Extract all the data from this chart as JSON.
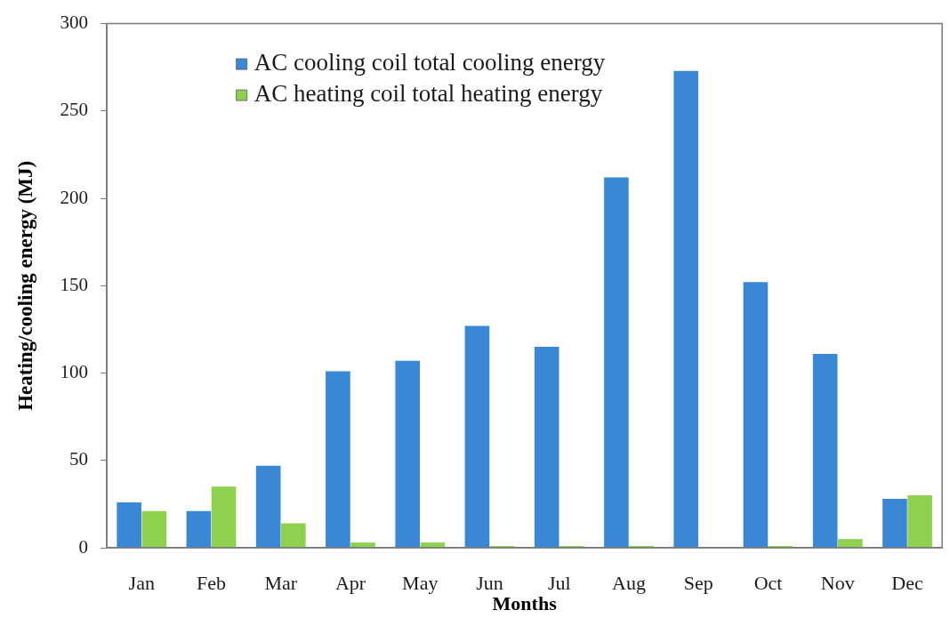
{
  "chart_data": {
    "type": "bar",
    "xlabel": "Months",
    "ylabel": "Heating/cooling energy (MJ)",
    "categories": [
      "Jan",
      "Feb",
      "Mar",
      "Apr",
      "May",
      "Jun",
      "Jul",
      "Aug",
      "Sep",
      "Oct",
      "Nov",
      "Dec"
    ],
    "series": [
      {
        "name": "AC cooling coil total cooling energy",
        "color": "#3a87d6",
        "values": [
          26,
          21,
          47,
          101,
          107,
          127,
          115,
          212,
          273,
          152,
          111,
          28
        ]
      },
      {
        "name": "AC heating coil total heating energy",
        "color": "#8fd14f",
        "values": [
          21,
          35,
          14,
          3,
          3,
          1,
          1,
          1,
          0,
          1,
          5,
          30
        ]
      }
    ],
    "ylim": [
      0,
      300
    ],
    "yticks": [
      0,
      50,
      100,
      150,
      200,
      250,
      300
    ],
    "legend": "top left"
  }
}
